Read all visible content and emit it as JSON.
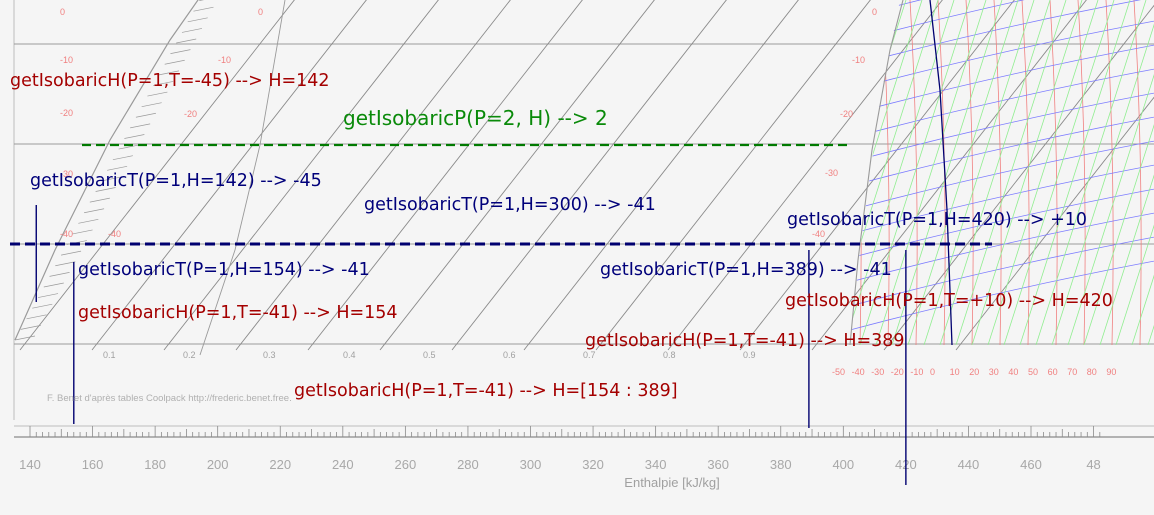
{
  "colors": {
    "background": "#f5f5f5",
    "grid_line": "#9a9a9a",
    "isotherm_red": "#f08080",
    "iso_blue": "#7b7bff",
    "iso_green": "#90ee90",
    "temp_label": "#f08080",
    "annot_red": "#a40000",
    "annot_green": "#0a8a0a",
    "annot_blue": "#00007a",
    "dash_green": "#007a00",
    "dash_navy": "#000070"
  },
  "chart_data": {
    "type": "line",
    "xlabel": "Enthalpie  [kJ/kg]",
    "x_ticks": [
      "140",
      "160",
      "180",
      "200",
      "220",
      "240",
      "260",
      "280",
      "300",
      "320",
      "340",
      "360",
      "380",
      "400",
      "420",
      "440",
      "460",
      "48"
    ],
    "xlim": [
      140,
      480
    ],
    "left_temp_labels": [
      "0",
      "-10",
      "-20",
      "-30",
      "-40"
    ],
    "inner_temp_labels": [
      "0",
      "-10",
      "-20",
      "-40"
    ],
    "right_temp_labels": [
      "0",
      "-10",
      "-20",
      "-30",
      "-40"
    ],
    "quality_labels": [
      "0.1",
      "0.2",
      "0.3",
      "0.4",
      "0.5",
      "0.6",
      "0.7",
      "0.8",
      "0.9"
    ],
    "superheat_labels": [
      "-50",
      "-40",
      "-30",
      "-20",
      "-10",
      "0",
      "10",
      "20",
      "30",
      "40",
      "50",
      "60",
      "70",
      "80",
      "90"
    ],
    "credit": "F. Benet d'après tables Coolpack http://frederic.benet.free.",
    "markers": [
      {
        "name": "H=142",
        "h": 142
      },
      {
        "name": "H=154",
        "h": 154
      },
      {
        "name": "H=389",
        "h": 389
      },
      {
        "name": "H=420",
        "h": 420
      }
    ]
  },
  "annotations": [
    {
      "id": "isobaric-h-142",
      "text": "getIsobaricH(P=1,T=-45) --> H=142",
      "color": "annot_red"
    },
    {
      "id": "isobaric-p-2",
      "text": "getIsobaricP(P=2, H) --> 2",
      "color": "annot_green"
    },
    {
      "id": "isobaric-t-142",
      "text": "getIsobaricT(P=1,H=142) --> -45",
      "color": "annot_blue"
    },
    {
      "id": "isobaric-t-300",
      "text": "getIsobaricT(P=1,H=300) --> -41",
      "color": "annot_blue"
    },
    {
      "id": "isobaric-t-420",
      "text": "getIsobaricT(P=1,H=420) --> +10",
      "color": "annot_blue"
    },
    {
      "id": "isobaric-t-154",
      "text": "getIsobaricT(P=1,H=154) --> -41",
      "color": "annot_blue"
    },
    {
      "id": "isobaric-t-389",
      "text": "getIsobaricT(P=1,H=389) --> -41",
      "color": "annot_blue"
    },
    {
      "id": "isobaric-h-420",
      "text": "getIsobaricH(P=1,T=+10) --> H=420",
      "color": "annot_red"
    },
    {
      "id": "isobaric-h-154",
      "text": "getIsobaricH(P=1,T=-41) --> H=154",
      "color": "annot_red"
    },
    {
      "id": "isobaric-h-389",
      "text": "getIsobaricH(P=1,T=-41) --> H=389",
      "color": "annot_red"
    },
    {
      "id": "isobaric-h-range",
      "text": "getIsobaricH(P=1,T=-41) --> H=[154 : 389]",
      "color": "annot_red"
    }
  ]
}
